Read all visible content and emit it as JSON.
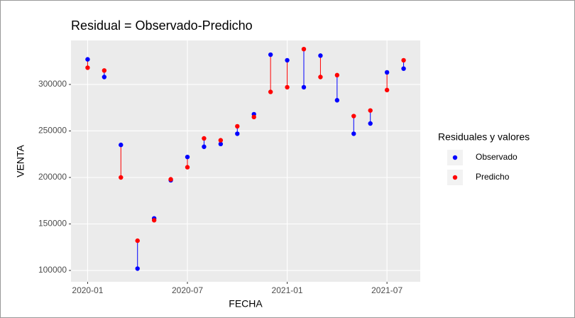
{
  "chart_data": {
    "type": "residual-scatter",
    "title": "Residual = Observado-Predicho",
    "x_label": "FECHA",
    "y_label": "VENTA",
    "legend_title": "Residuales y valores",
    "legend": "right",
    "x": [
      "2020-01",
      "2020-02",
      "2020-03",
      "2020-04",
      "2020-05",
      "2020-06",
      "2020-07",
      "2020-08",
      "2020-09",
      "2020-10",
      "2020-11",
      "2020-12",
      "2021-01",
      "2021-02",
      "2021-03",
      "2021-04",
      "2021-05",
      "2021-06",
      "2021-07",
      "2021-08"
    ],
    "series": [
      {
        "name": "Observado",
        "color": "#0000ff",
        "values": [
          327000,
          308000,
          235000,
          102000,
          156000,
          197000,
          222000,
          233000,
          236000,
          247000,
          268000,
          332000,
          326000,
          297000,
          331000,
          283000,
          247000,
          258000,
          313000,
          317000
        ]
      },
      {
        "name": "Predicho",
        "color": "#ff0000",
        "values": [
          318000,
          315000,
          200000,
          132000,
          154000,
          198000,
          211000,
          242000,
          240000,
          255000,
          265000,
          292000,
          297000,
          338000,
          308000,
          310000,
          266000,
          272000,
          294000,
          326000
        ]
      }
    ],
    "xlim": [
      "2019-12",
      "2021-09"
    ],
    "xticks": [
      "2020-01",
      "2020-07",
      "2021-01",
      "2021-07"
    ],
    "ylim": [
      87800,
      347300
    ],
    "yticks": [
      100000,
      150000,
      200000,
      250000,
      300000
    ],
    "grid": true
  }
}
